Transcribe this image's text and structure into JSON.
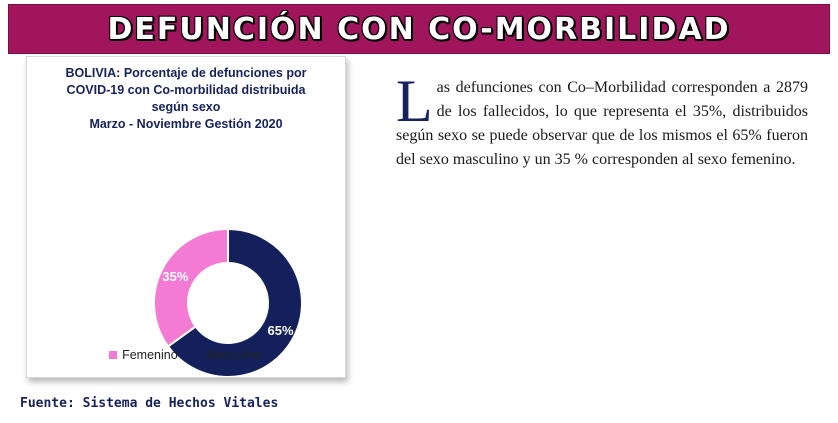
{
  "header": {
    "title": "DEFUNCIÓN CON CO-MORBILIDAD"
  },
  "chart_data": {
    "type": "pie",
    "title_lines": [
      "BOLIVIA: Porcentaje de defunciones por",
      "COVID-19 con Co-morbilidad distribuida",
      "según sexo",
      "Marzo - Noviembre Gestión 2020"
    ],
    "categories": [
      "Femenino",
      "Masculino"
    ],
    "values": [
      35,
      65
    ],
    "data_labels": [
      "35%",
      "65%"
    ],
    "colors": [
      "#f37bd3",
      "#14205c"
    ],
    "legend_position": "bottom",
    "donut": true
  },
  "body": {
    "drop_cap": "L",
    "paragraph": "as defunciones con Co–Morbilidad corresponden a 2879 de los fallecidos, lo que representa el 35%, distribuidos según sexo se puede observar que de los mismos el 65% fueron del sexo masculino y un 35 % corresponden al sexo femenino."
  },
  "source": "Fuente: Sistema de Hechos Vitales"
}
